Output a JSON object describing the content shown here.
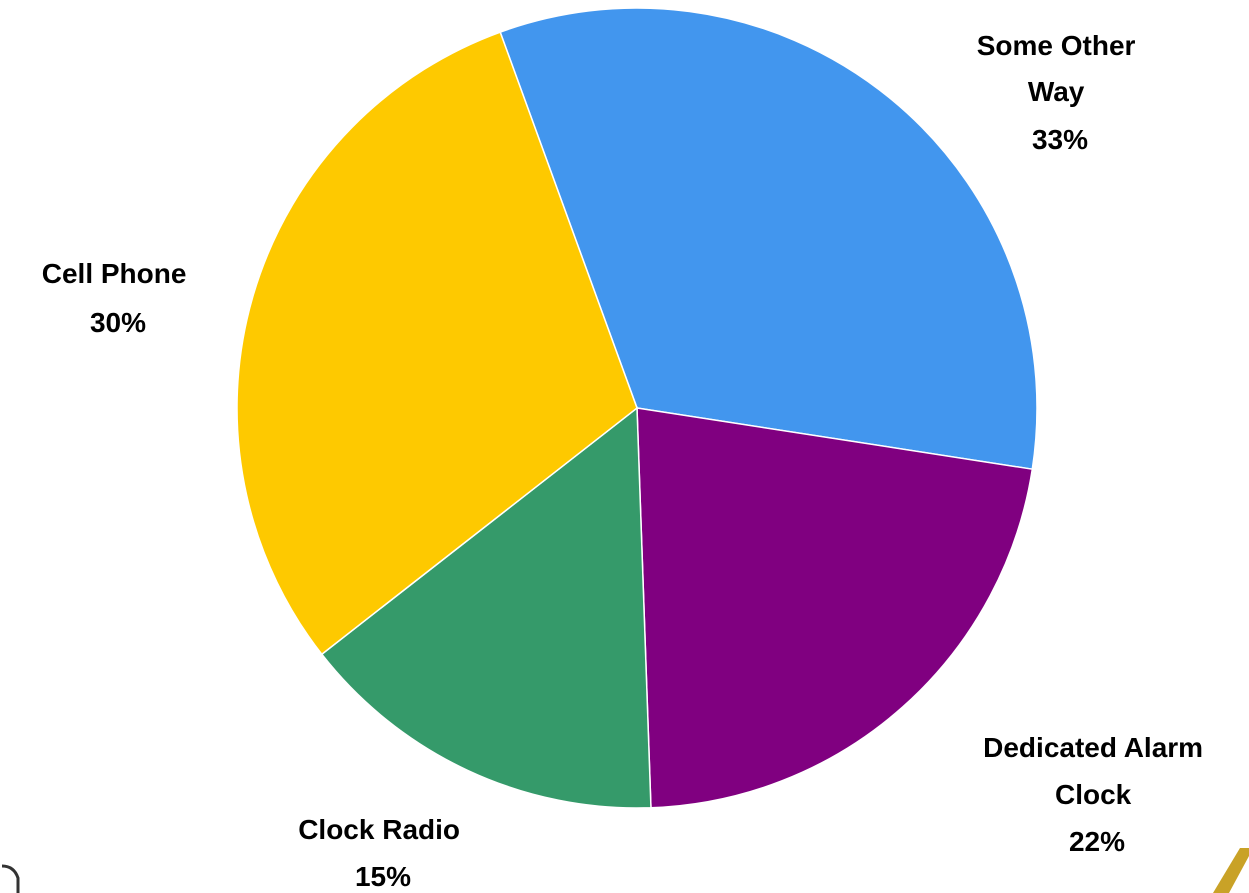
{
  "chart_data": {
    "type": "pie",
    "start_angle_deg": -20,
    "direction": "clockwise",
    "legend": "none",
    "slices": [
      {
        "label": "Some Other Way",
        "value": 33,
        "display": "33%",
        "color": "#4296ee"
      },
      {
        "label": "Dedicated Alarm Clock",
        "value": 22,
        "display": "22%",
        "color": "#800080"
      },
      {
        "label": "Clock Radio",
        "value": 15,
        "display": "15%",
        "color": "#359a6a"
      },
      {
        "label": "Cell Phone",
        "value": 30,
        "display": "30%",
        "color": "#fec900"
      }
    ]
  },
  "labels": [
    {
      "lines": [
        "Some Other",
        "Way",
        "33%"
      ]
    },
    {
      "lines": [
        "Dedicated Alarm",
        "Clock",
        "22%"
      ]
    },
    {
      "lines": [
        "Clock Radio",
        "15%"
      ]
    },
    {
      "lines": [
        "Cell Phone",
        "30%"
      ]
    }
  ]
}
